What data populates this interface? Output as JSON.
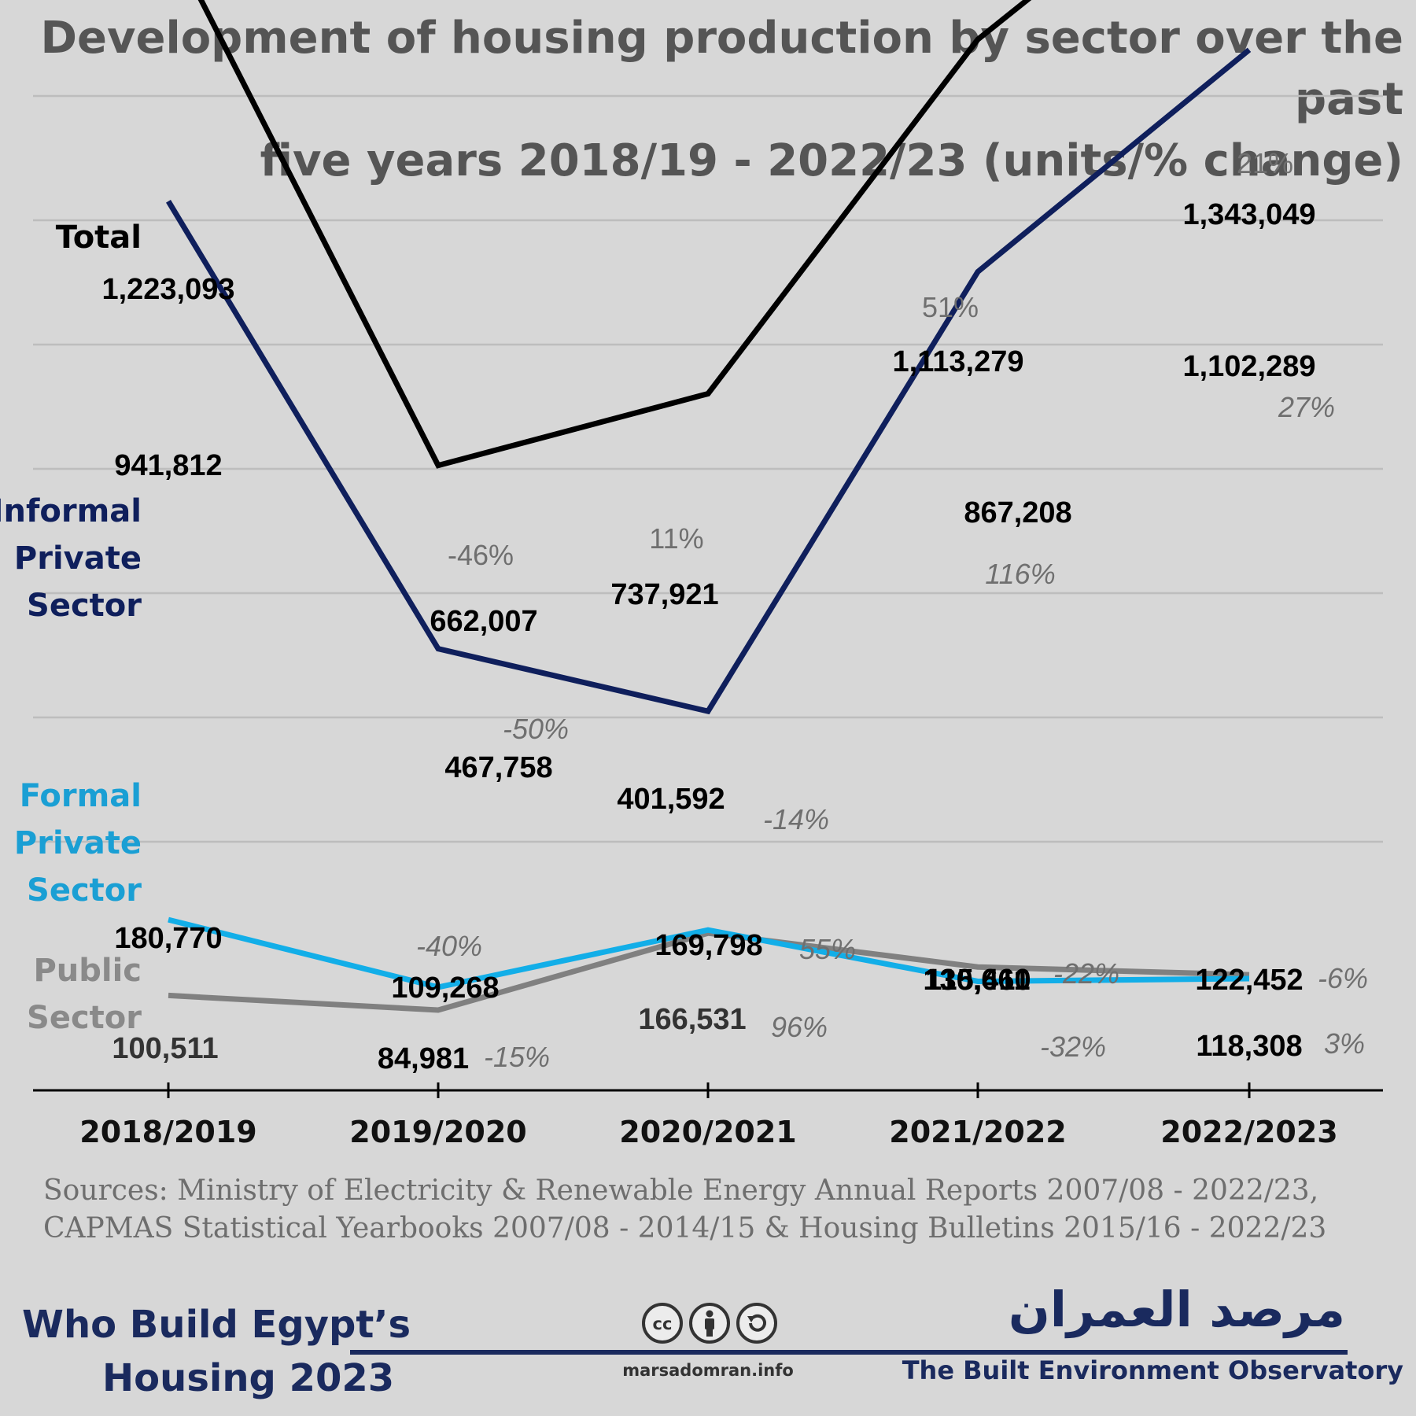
{
  "chart_data": {
    "type": "line",
    "title": "Development of housing production by sector over the past five years 2018/19 - 2022/23 (units/% change)",
    "title_lines": [
      "Development of housing production by sector over the past",
      "five years 2018/19 - 2022/23 (units/% change)"
    ],
    "categories": [
      "2018/2019",
      "2019/2020",
      "2020/2021",
      "2021/2022",
      "2022/2023"
    ],
    "ylim": [
      0,
      1500000
    ],
    "grid": true,
    "legend": "left",
    "series": [
      {
        "key": "total",
        "name": "Total",
        "name_lines": [
          "Total"
        ],
        "color": "#000000",
        "values": [
          1223093,
          662007,
          737921,
          1113279,
          1343049
        ],
        "value_labels": [
          "1,223,093",
          "662,007",
          "737,921",
          "1,113,279",
          "1,343,049"
        ],
        "pct_labels": [
          "",
          "-46%",
          "11%",
          "51%",
          "21%"
        ]
      },
      {
        "key": "informal",
        "name": "Informal Private Sector",
        "name_lines": [
          "Informal",
          "Private",
          "Sector"
        ],
        "color": "#0f1f5c",
        "values": [
          941812,
          467758,
          401592,
          867208,
          1102289
        ],
        "value_labels": [
          "941,812",
          "467,758",
          "401,592",
          "867,208",
          "1,102,289"
        ],
        "pct_labels": [
          "",
          "-50%",
          "-14%",
          "116%",
          "27%"
        ]
      },
      {
        "key": "formal",
        "name": "Formal Private Sector",
        "name_lines": [
          "Formal",
          "Private",
          "Sector"
        ],
        "color": "#12aee8",
        "label_color": "#1a9fd4",
        "values": [
          180770,
          109268,
          169798,
          115411,
          118308
        ],
        "value_labels": [
          "180,770",
          "109,268",
          "169,798",
          "115,411",
          "118,308"
        ],
        "pct_labels": [
          "",
          "-40%",
          "55%",
          "-32%",
          "3%"
        ]
      },
      {
        "key": "public",
        "name": "Public Sector",
        "name_lines": [
          "Public",
          "Sector"
        ],
        "color": "#808080",
        "label_color": "#8a8a8a",
        "values": [
          100511,
          84981,
          166531,
          130660,
          122452
        ],
        "value_labels": [
          "100,511",
          "84,981",
          "166,531",
          "130,660",
          "122,452"
        ],
        "pct_labels": [
          "",
          "-15%",
          "96%",
          "-22%",
          "-6%"
        ]
      }
    ]
  },
  "sources": {
    "line1": "Sources: Ministry of Electricity & Renewable Energy Annual Reports 2007/08 - 2022/23,",
    "line2": "CAPMAS Statistical Yearbooks 2007/08 - 2014/15 & Housing Bulletins 2015/16 - 2022/23"
  },
  "footer": {
    "series_title_line1": "Who Build Egypt’s",
    "series_title_line2": "Housing 2023",
    "website": "marsadomran.info",
    "arabic_name": "مرصد العمران",
    "org_name": "The Built Environment Observatory",
    "license_icons": [
      "cc-icon",
      "by-attribution-icon",
      "share-alike-icon"
    ]
  }
}
